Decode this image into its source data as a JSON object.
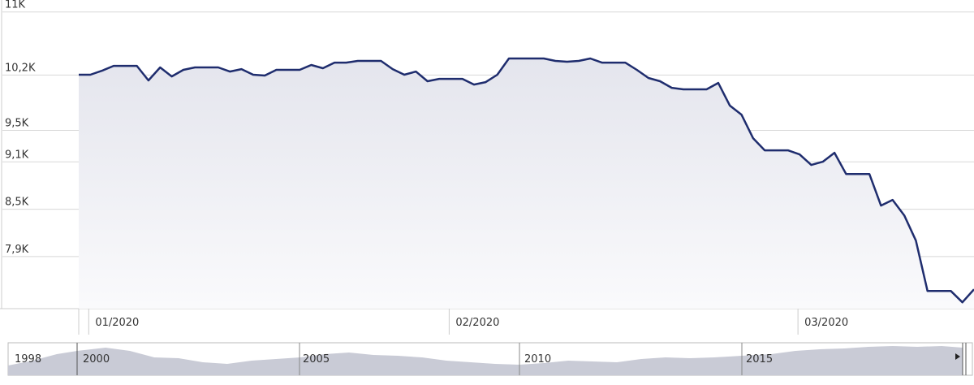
{
  "chart_data": {
    "type": "line",
    "categories": [
      null,
      "01/2020",
      null,
      null,
      null,
      null,
      null,
      null,
      null,
      null,
      null,
      null,
      null,
      null,
      null,
      null,
      null,
      null,
      null,
      null,
      null,
      null,
      null,
      null,
      null,
      null,
      null,
      null,
      null,
      null,
      null,
      null,
      "02/2020",
      null,
      null,
      null,
      null,
      null,
      null,
      null,
      null,
      null,
      null,
      null,
      null,
      null,
      null,
      null,
      null,
      null,
      null,
      null,
      null,
      null,
      null,
      null,
      null,
      null,
      null,
      null,
      null,
      null,
      "03/2020",
      null,
      null,
      null,
      null,
      null,
      null,
      null,
      null,
      null,
      null,
      null,
      null,
      null,
      null,
      null
    ],
    "values": [
      10204,
      10204,
      10255,
      10317,
      10317,
      10317,
      10132,
      10297,
      10183,
      10266,
      10297,
      10297,
      10297,
      10245,
      10276,
      10204,
      10194,
      10266,
      10266,
      10266,
      10328,
      10287,
      10358,
      10358,
      10379,
      10379,
      10379,
      10276,
      10204,
      10245,
      10122,
      10152,
      10152,
      10152,
      10080,
      10111,
      10204,
      10410,
      10410,
      10410,
      10410,
      10379,
      10369,
      10379,
      10410,
      10358,
      10358,
      10358,
      10266,
      10163,
      10122,
      10039,
      10019,
      10019,
      10019,
      10101,
      9813,
      9699,
      9401,
      9246,
      9246,
      9246,
      9195,
      9061,
      9102,
      9215,
      8947,
      8947,
      8947,
      8546,
      8618,
      8422,
      8103,
      7464,
      7464,
      7464,
      7320,
      7485
    ],
    "color": "#1f2d6e",
    "ylim": [
      7240,
      11100
    ],
    "yticks": [
      {
        "value": 11000,
        "label": "11K"
      },
      {
        "value": 10200,
        "label": "10,2K"
      },
      {
        "value": 9500,
        "label": "9,5K"
      },
      {
        "value": 9100,
        "label": "9,1K"
      },
      {
        "value": 8500,
        "label": "8,5K"
      },
      {
        "value": 7900,
        "label": "7,9K"
      }
    ],
    "grid": true,
    "navigator_labels": [
      "1998",
      "2000",
      "2005",
      "2010",
      "2015"
    ]
  }
}
